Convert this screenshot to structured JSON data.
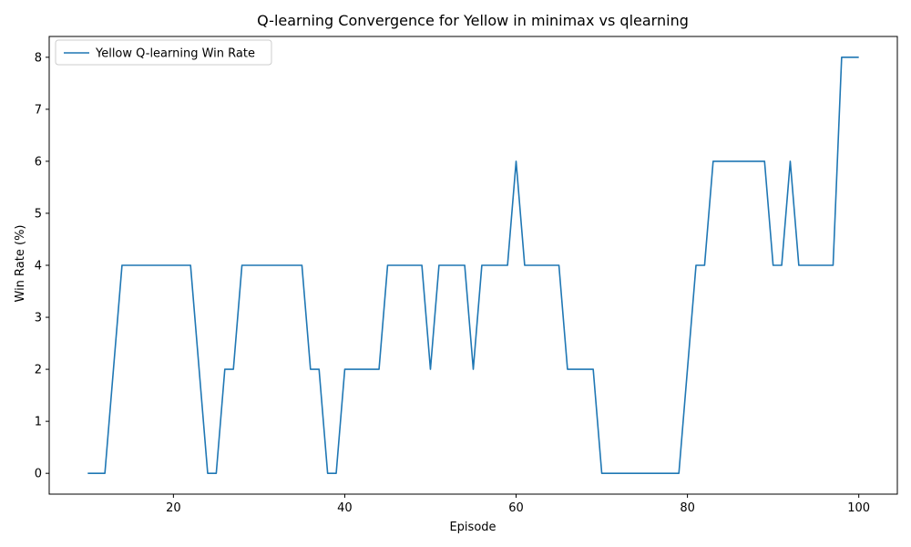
{
  "chart_data": {
    "type": "line",
    "title": "Q-learning Convergence for Yellow in minimax vs qlearning",
    "xlabel": "Episode",
    "ylabel": "Win Rate (%)",
    "xlim": [
      5.5,
      104.5
    ],
    "ylim": [
      -0.4,
      8.4
    ],
    "xticks": [
      20,
      40,
      60,
      80,
      100
    ],
    "yticks": [
      0,
      1,
      2,
      3,
      4,
      5,
      6,
      7,
      8
    ],
    "grid": false,
    "legend_position": "top-left",
    "series": [
      {
        "name": "Yellow Q-learning Win Rate",
        "color": "#1f77b4",
        "x": [
          10,
          11,
          12,
          13,
          14,
          15,
          16,
          17,
          18,
          19,
          20,
          21,
          22,
          23,
          24,
          25,
          26,
          27,
          28,
          29,
          30,
          31,
          32,
          33,
          34,
          35,
          36,
          37,
          38,
          39,
          40,
          41,
          42,
          43,
          44,
          45,
          46,
          47,
          48,
          49,
          50,
          51,
          52,
          53,
          54,
          55,
          56,
          57,
          58,
          59,
          60,
          61,
          62,
          63,
          64,
          65,
          66,
          67,
          68,
          69,
          70,
          71,
          72,
          73,
          74,
          75,
          76,
          77,
          78,
          79,
          80,
          81,
          82,
          83,
          84,
          85,
          86,
          87,
          88,
          89,
          90,
          91,
          92,
          93,
          94,
          95,
          96,
          97,
          98,
          99,
          100
        ],
        "y": [
          0,
          0,
          0,
          2,
          4,
          4,
          4,
          4,
          4,
          4,
          4,
          4,
          4,
          2,
          0,
          0,
          2,
          2,
          4,
          4,
          4,
          4,
          4,
          4,
          4,
          4,
          2,
          2,
          0,
          0,
          2,
          2,
          2,
          2,
          2,
          4,
          4,
          4,
          4,
          4,
          2,
          4,
          4,
          4,
          4,
          2,
          4,
          4,
          4,
          4,
          6,
          4,
          4,
          4,
          4,
          4,
          2,
          2,
          2,
          2,
          0,
          0,
          0,
          0,
          0,
          0,
          0,
          0,
          0,
          0,
          2,
          4,
          4,
          6,
          6,
          6,
          6,
          6,
          6,
          6,
          4,
          4,
          6,
          4,
          4,
          4,
          4,
          4,
          8,
          8,
          8
        ]
      }
    ]
  }
}
